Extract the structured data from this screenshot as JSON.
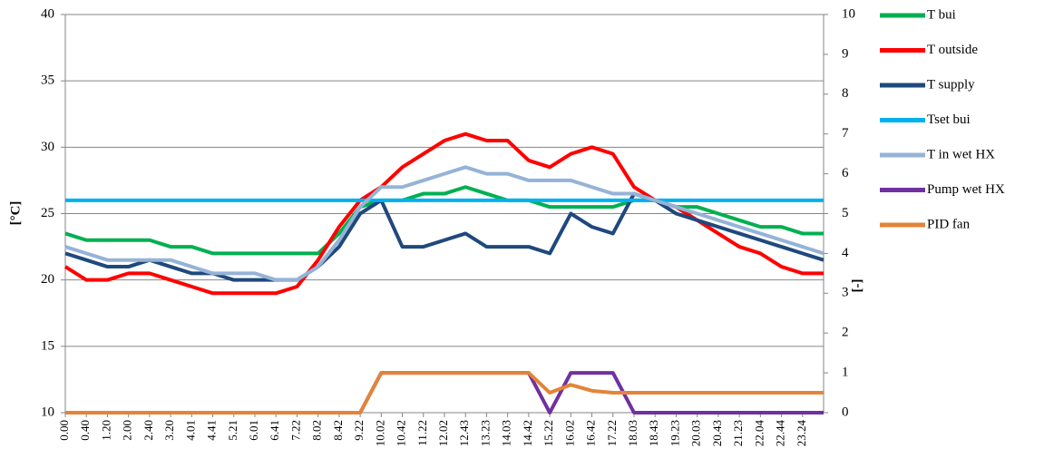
{
  "chart_data": {
    "type": "line",
    "categories": [
      "0.00",
      "0.40",
      "1.20",
      "2.00",
      "2.40",
      "3.20",
      "4.01",
      "4.41",
      "5.21",
      "6.01",
      "6.41",
      "7.22",
      "8.02",
      "8.42",
      "9.22",
      "10.02",
      "10.42",
      "11.22",
      "12.02",
      "12.43",
      "13.23",
      "14.03",
      "14.42",
      "15.22",
      "16.02",
      "16.42",
      "17.22",
      "18.03",
      "18.43",
      "19.23",
      "20.03",
      "20.43",
      "21.23",
      "22.04",
      "22.44",
      "23.24",
      null
    ],
    "y_label": "[°C]",
    "y2_label": "[-]",
    "ylim": [
      10,
      40
    ],
    "yticks": [
      10,
      15,
      20,
      25,
      30,
      35,
      40
    ],
    "y2lim": [
      0,
      10
    ],
    "y2ticks": [
      0,
      1,
      2,
      3,
      4,
      5,
      6,
      7,
      8,
      9,
      10
    ],
    "grid": true,
    "legend": "right",
    "series": [
      {
        "name": "T bui",
        "color": "#00b050",
        "values": [
          23.5,
          23,
          23,
          23,
          23,
          22.5,
          22.5,
          22,
          22,
          22,
          22,
          22,
          22,
          23.5,
          25.5,
          26,
          26,
          26.5,
          26.5,
          27,
          26.5,
          26,
          26,
          25.5,
          25.5,
          25.5,
          25.5,
          26,
          26,
          25.5,
          25.5,
          25,
          24.5,
          24,
          24,
          23.5,
          23.5
        ]
      },
      {
        "name": "T outside",
        "color": "#ff0000",
        "values": [
          21,
          20,
          20,
          20.5,
          20.5,
          20,
          19.5,
          19,
          19,
          19,
          19,
          19.5,
          21.5,
          24,
          26,
          27,
          28.5,
          29.5,
          30.5,
          31,
          30.5,
          30.5,
          29,
          28.5,
          29.5,
          30,
          29.5,
          27,
          26,
          25.5,
          24.5,
          23.5,
          22.5,
          22,
          21,
          20.5,
          20.5
        ]
      },
      {
        "name": "T supply",
        "color": "#1f497d",
        "values": [
          22,
          21.5,
          21,
          21,
          21.5,
          21,
          20.5,
          20.5,
          20,
          20,
          20,
          20,
          21,
          22.5,
          25,
          26,
          22.5,
          22.5,
          23,
          23.5,
          22.5,
          22.5,
          22.5,
          22,
          25,
          24,
          23.5,
          26.5,
          26,
          25,
          24.5,
          24,
          23.5,
          23,
          22.5,
          22,
          21.5
        ]
      },
      {
        "name": "Tset bui",
        "color": "#00b0f0",
        "values": [
          26,
          26,
          26,
          26,
          26,
          26,
          26,
          26,
          26,
          26,
          26,
          26,
          26,
          26,
          26,
          26,
          26,
          26,
          26,
          26,
          26,
          26,
          26,
          26,
          26,
          26,
          26,
          26,
          26,
          26,
          26,
          26,
          26,
          26,
          26,
          26,
          26
        ]
      },
      {
        "name": "T in wet HX",
        "color": "#95b3d7",
        "values": [
          22.5,
          22,
          21.5,
          21.5,
          21.5,
          21.5,
          21,
          20.5,
          20.5,
          20.5,
          20,
          20,
          21,
          23,
          25.5,
          27,
          27,
          27.5,
          28,
          28.5,
          28,
          28,
          27.5,
          27.5,
          27.5,
          27,
          26.5,
          26.5,
          26,
          25.5,
          25,
          24.5,
          24,
          23.5,
          23,
          22.5,
          22
        ]
      },
      {
        "name": "Pump wet HX",
        "color": "#7030a0",
        "axis": "y2",
        "values": [
          0,
          0,
          0,
          0,
          0,
          0,
          0,
          0,
          0,
          0,
          0,
          0,
          0,
          0,
          0,
          1,
          1,
          1,
          1,
          1,
          1,
          1,
          1,
          0,
          1,
          1,
          1,
          0,
          0,
          0,
          0,
          0,
          0,
          0,
          0,
          0,
          0
        ]
      },
      {
        "name": "PID fan",
        "color": "#e3843a",
        "axis": "y2",
        "values": [
          0,
          0,
          0,
          0,
          0,
          0,
          0,
          0,
          0,
          0,
          0,
          0,
          0,
          0,
          0,
          1,
          1,
          1,
          1,
          1,
          1,
          1,
          1,
          0.5,
          0.7,
          0.55,
          0.5,
          0.5,
          0.5,
          0.5,
          0.5,
          0.5,
          0.5,
          0.5,
          0.5,
          0.5,
          0.5
        ]
      }
    ]
  }
}
